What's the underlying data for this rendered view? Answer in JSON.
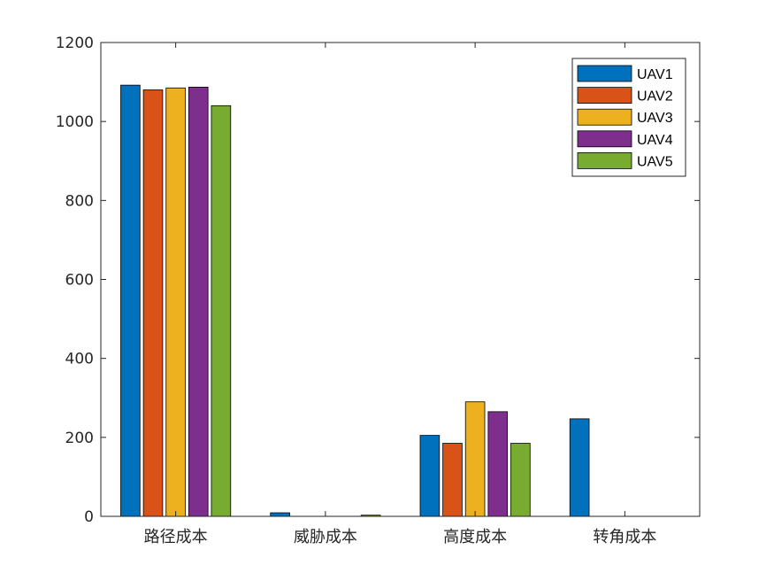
{
  "chart_data": {
    "type": "bar",
    "title": "",
    "xlabel": "",
    "ylabel": "",
    "categories": [
      "路径成本",
      "威胁成本",
      "高度成本",
      "转角成本"
    ],
    "series": [
      {
        "name": "UAV1",
        "color": "#0072BD",
        "values": [
          1092,
          9,
          205,
          247
        ]
      },
      {
        "name": "UAV2",
        "color": "#D95319",
        "values": [
          1080,
          0,
          185,
          0
        ]
      },
      {
        "name": "UAV3",
        "color": "#EDB120",
        "values": [
          1085,
          0,
          290,
          0
        ]
      },
      {
        "name": "UAV4",
        "color": "#7E2F8E",
        "values": [
          1087,
          0,
          265,
          0
        ]
      },
      {
        "name": "UAV5",
        "color": "#77AC30",
        "values": [
          1040,
          3,
          185,
          0
        ]
      }
    ],
    "ylim": [
      0,
      1200
    ],
    "yticks": [
      0,
      200,
      400,
      600,
      800,
      1000,
      1200
    ],
    "grid": false,
    "legend_position": "top-right"
  }
}
